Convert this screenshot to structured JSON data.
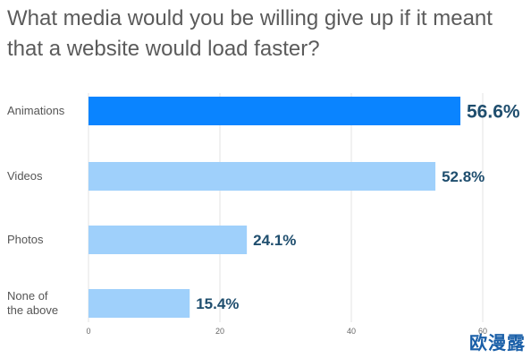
{
  "chart_data": {
    "type": "bar",
    "orientation": "horizontal",
    "title": "What media would you be willing give up if it meant that a website would load faster?",
    "categories": [
      "Animations",
      "Videos",
      "Photos",
      "None of the above"
    ],
    "values": [
      56.6,
      52.8,
      24.1,
      15.4
    ],
    "value_labels": [
      "56.6%",
      "52.8%",
      "24.1%",
      "15.4%"
    ],
    "highlight_index": 0,
    "xlim": [
      0,
      60
    ],
    "xticks": [
      0,
      20,
      40,
      60
    ],
    "grid": true,
    "legend": "none",
    "colors": {
      "highlight": "#0a84ff",
      "bar": "#9fd0fb",
      "value_text": "#1f4e6e"
    }
  },
  "watermark": "欧漫露"
}
